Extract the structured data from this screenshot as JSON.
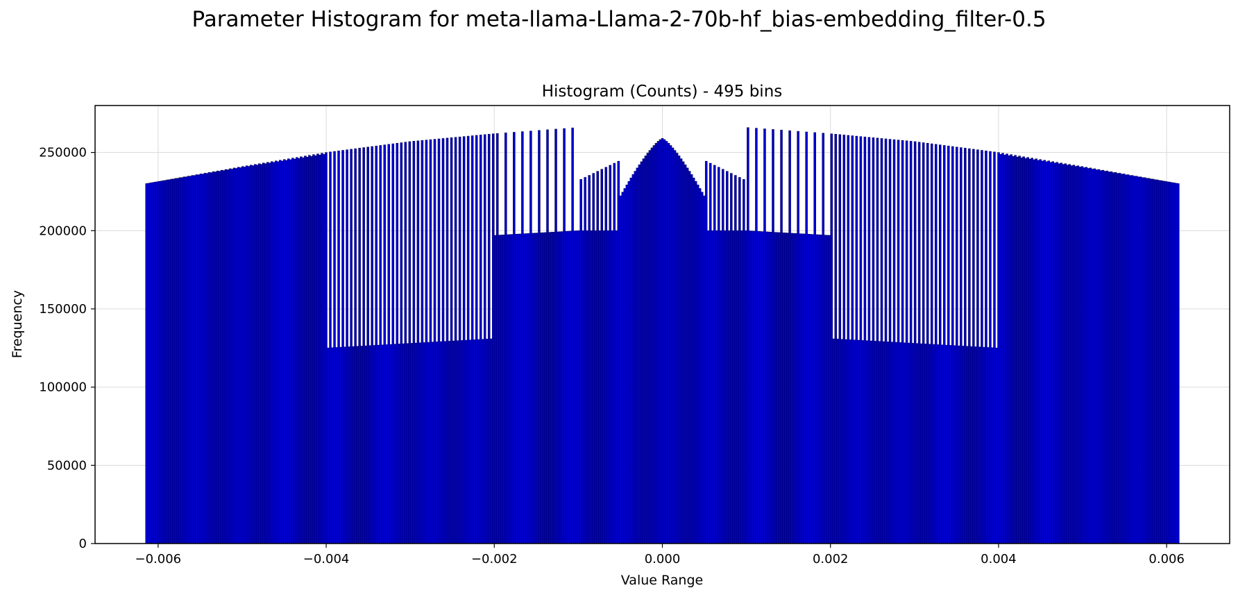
{
  "suptitle": "Parameter Histogram for meta-llama-Llama-2-70b-hf_bias-embedding_filter-0.5",
  "chart_data": {
    "type": "bar",
    "title": "Histogram (Counts) - 495 bins",
    "xlabel": "Value Range",
    "ylabel": "Frequency",
    "bins": 495,
    "xlim": [
      -0.00675,
      0.00675
    ],
    "ylim": [
      0,
      280000
    ],
    "xticks": [
      -0.006,
      -0.004,
      -0.002,
      0.0,
      0.002,
      0.004,
      0.006
    ],
    "xtick_labels": [
      "−0.006",
      "−0.004",
      "−0.002",
      "0.000",
      "0.002",
      "0.004",
      "0.006"
    ],
    "yticks": [
      0,
      50000,
      100000,
      150000,
      200000,
      250000
    ],
    "ytick_labels": [
      "0",
      "50000",
      "100000",
      "150000",
      "200000",
      "250000"
    ],
    "grid": true,
    "bar_color": "#0000cd",
    "edge_color": "#000040",
    "range": [
      -0.00615,
      0.00615
    ],
    "envelope": {
      "x": [
        -0.00615,
        -0.005,
        -0.004,
        -0.003,
        -0.002,
        -0.001,
        0.001,
        0.002,
        0.003,
        0.004,
        0.005,
        0.00615
      ],
      "y": [
        230000,
        241000,
        250000,
        257000,
        262000,
        266000,
        266000,
        262000,
        257000,
        250000,
        241000,
        230000
      ]
    },
    "outer_valley_y": 230000,
    "band_1_range": [
      -0.004,
      0.004
    ],
    "band_1_valley_y": [
      125000,
      131000
    ],
    "band_2_range": [
      -0.002,
      0.002
    ],
    "band_2_valley_y": [
      197000,
      200000
    ],
    "band_3_range": [
      -0.001,
      0.001
    ],
    "band_3_peak_y": [
      232000,
      245000
    ],
    "center_peak": {
      "x": 0.0,
      "y": 259000,
      "base_y": 222000,
      "halfwidth": 0.0005
    }
  }
}
